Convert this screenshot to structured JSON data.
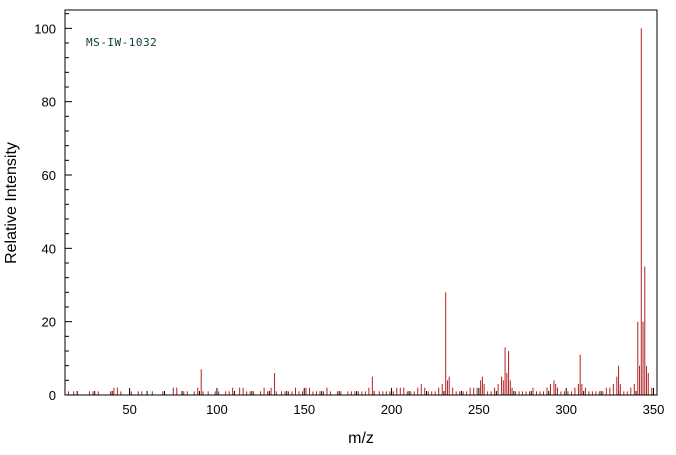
{
  "chart": {
    "annotation": "MS-IW-1032",
    "xlabel": "m/z",
    "ylabel": "Relative Intensity",
    "x_ticks": [
      50,
      100,
      150,
      200,
      250,
      300,
      350
    ],
    "y_ticks": [
      0,
      20,
      40,
      60,
      80,
      100
    ],
    "colors": {
      "peak": "#b22222",
      "axis": "#000000",
      "annotation": "#0b3b3b",
      "background": "#ffffff"
    }
  },
  "chart_data": {
    "type": "bar",
    "title": "MS-IW-1032",
    "subtitle": "",
    "xlabel": "m/z",
    "ylabel": "Relative Intensity",
    "xlim": [
      13,
      352
    ],
    "ylim": [
      0,
      105
    ],
    "x_major_tick_step": 50,
    "x_minor_tick_step": 10,
    "y_major_tick_step": 20,
    "y_minor_tick_step": 4,
    "grid": false,
    "legend_position": "none",
    "peaks_mz_intensity": [
      [
        15,
        1
      ],
      [
        18,
        1
      ],
      [
        27,
        1
      ],
      [
        29,
        1
      ],
      [
        32,
        1
      ],
      [
        39,
        1
      ],
      [
        41,
        2
      ],
      [
        43,
        2
      ],
      [
        45,
        1
      ],
      [
        51,
        1
      ],
      [
        55,
        1
      ],
      [
        57,
        1
      ],
      [
        63,
        1
      ],
      [
        69,
        1
      ],
      [
        75,
        2
      ],
      [
        77,
        2
      ],
      [
        81,
        1
      ],
      [
        83,
        1
      ],
      [
        87,
        1
      ],
      [
        89,
        2
      ],
      [
        91,
        7
      ],
      [
        92,
        1
      ],
      [
        95,
        1
      ],
      [
        99,
        1
      ],
      [
        101,
        1
      ],
      [
        105,
        1
      ],
      [
        107,
        1
      ],
      [
        109,
        2
      ],
      [
        113,
        2
      ],
      [
        115,
        2
      ],
      [
        117,
        1
      ],
      [
        119,
        1
      ],
      [
        121,
        1
      ],
      [
        125,
        1
      ],
      [
        127,
        2
      ],
      [
        129,
        1
      ],
      [
        131,
        2
      ],
      [
        133,
        6
      ],
      [
        134,
        1
      ],
      [
        137,
        1
      ],
      [
        139,
        1
      ],
      [
        141,
        1
      ],
      [
        143,
        1
      ],
      [
        145,
        2
      ],
      [
        147,
        1
      ],
      [
        149,
        1
      ],
      [
        151,
        2
      ],
      [
        153,
        2
      ],
      [
        155,
        1
      ],
      [
        157,
        1
      ],
      [
        159,
        1
      ],
      [
        161,
        1
      ],
      [
        163,
        2
      ],
      [
        165,
        1
      ],
      [
        169,
        1
      ],
      [
        171,
        1
      ],
      [
        175,
        1
      ],
      [
        177,
        1
      ],
      [
        179,
        1
      ],
      [
        181,
        1
      ],
      [
        183,
        1
      ],
      [
        185,
        1
      ],
      [
        187,
        2
      ],
      [
        189,
        5
      ],
      [
        190,
        1
      ],
      [
        193,
        1
      ],
      [
        195,
        1
      ],
      [
        197,
        1
      ],
      [
        199,
        1
      ],
      [
        201,
        1
      ],
      [
        203,
        2
      ],
      [
        205,
        2
      ],
      [
        207,
        2
      ],
      [
        209,
        1
      ],
      [
        211,
        1
      ],
      [
        213,
        1
      ],
      [
        215,
        2
      ],
      [
        217,
        3
      ],
      [
        219,
        2
      ],
      [
        221,
        1
      ],
      [
        223,
        1
      ],
      [
        225,
        1
      ],
      [
        227,
        2
      ],
      [
        229,
        3
      ],
      [
        231,
        28
      ],
      [
        232,
        4
      ],
      [
        233,
        5
      ],
      [
        235,
        2
      ],
      [
        237,
        1
      ],
      [
        239,
        1
      ],
      [
        241,
        1
      ],
      [
        243,
        1
      ],
      [
        245,
        2
      ],
      [
        247,
        2
      ],
      [
        249,
        2
      ],
      [
        251,
        4
      ],
      [
        252,
        5
      ],
      [
        253,
        3
      ],
      [
        255,
        1
      ],
      [
        257,
        1
      ],
      [
        259,
        2
      ],
      [
        261,
        3
      ],
      [
        263,
        5
      ],
      [
        264,
        4
      ],
      [
        265,
        13
      ],
      [
        266,
        6
      ],
      [
        267,
        12
      ],
      [
        268,
        4
      ],
      [
        269,
        2
      ],
      [
        271,
        1
      ],
      [
        273,
        1
      ],
      [
        275,
        1
      ],
      [
        277,
        1
      ],
      [
        279,
        1
      ],
      [
        281,
        2
      ],
      [
        283,
        1
      ],
      [
        285,
        1
      ],
      [
        287,
        1
      ],
      [
        289,
        2
      ],
      [
        291,
        3
      ],
      [
        293,
        4
      ],
      [
        294,
        3
      ],
      [
        295,
        2
      ],
      [
        297,
        1
      ],
      [
        299,
        1
      ],
      [
        301,
        1
      ],
      [
        303,
        1
      ],
      [
        305,
        2
      ],
      [
        307,
        3
      ],
      [
        308,
        11
      ],
      [
        309,
        3
      ],
      [
        311,
        2
      ],
      [
        313,
        1
      ],
      [
        315,
        1
      ],
      [
        317,
        1
      ],
      [
        319,
        1
      ],
      [
        321,
        1
      ],
      [
        323,
        2
      ],
      [
        325,
        2
      ],
      [
        327,
        3
      ],
      [
        329,
        5
      ],
      [
        330,
        8
      ],
      [
        331,
        3
      ],
      [
        333,
        1
      ],
      [
        335,
        1
      ],
      [
        337,
        2
      ],
      [
        339,
        3
      ],
      [
        341,
        20
      ],
      [
        342,
        8
      ],
      [
        343,
        100
      ],
      [
        344,
        20
      ],
      [
        345,
        35
      ],
      [
        346,
        8
      ],
      [
        347,
        6
      ],
      [
        349,
        2
      ]
    ]
  }
}
